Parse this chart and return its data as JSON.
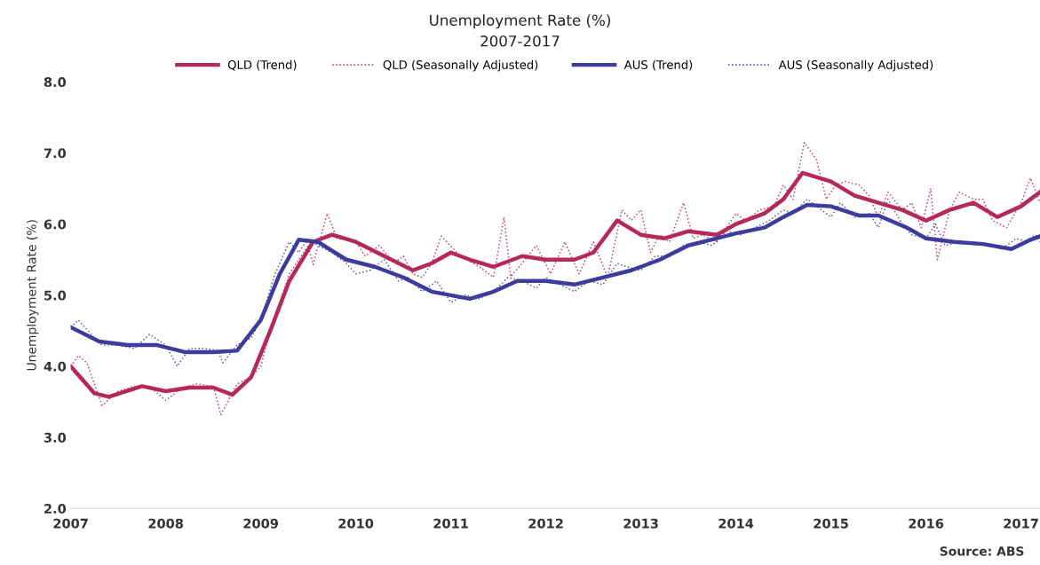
{
  "chart_data": {
    "type": "line",
    "title": "Unemployment Rate (%)",
    "subtitle": "2007-2017",
    "ylabel": "Unemployment Rate (%)",
    "xlim": [
      2007,
      2017.2
    ],
    "xticks": [
      2007,
      2008,
      2009,
      2010,
      2011,
      2012,
      2013,
      2014,
      2015,
      2016,
      2017
    ],
    "ylim": [
      2.0,
      8.0
    ],
    "yticks": [
      {
        "value": 2,
        "label": "2.0"
      },
      {
        "value": 3,
        "label": "3.0"
      },
      {
        "value": 4,
        "label": "4.0"
      },
      {
        "value": 5,
        "label": "5.0"
      },
      {
        "value": 6,
        "label": "6.0"
      },
      {
        "value": 7,
        "label": "7.0"
      },
      {
        "value": 8,
        "label": "8.0"
      }
    ],
    "grid": false,
    "legend": "top",
    "marker": "none",
    "annotations": [
      "Source: ABS"
    ],
    "series": [
      {
        "name": "QLD (Trend)",
        "color": "#b5285a",
        "line_style": "solid",
        "x": [
          2007.0,
          2007.25,
          2007.4,
          2007.75,
          2008.0,
          2008.25,
          2008.5,
          2008.7,
          2008.9,
          2009.1,
          2009.3,
          2009.55,
          2009.75,
          2010.0,
          2010.3,
          2010.6,
          2010.8,
          2011.0,
          2011.2,
          2011.45,
          2011.75,
          2012.0,
          2012.3,
          2012.5,
          2012.75,
          2013.0,
          2013.25,
          2013.5,
          2013.8,
          2014.0,
          2014.3,
          2014.5,
          2014.7,
          2015.0,
          2015.25,
          2015.5,
          2015.75,
          2016.0,
          2016.25,
          2016.5,
          2016.75,
          2017.0,
          2017.2
        ],
        "values": [
          4.0,
          3.62,
          3.57,
          3.72,
          3.65,
          3.7,
          3.7,
          3.6,
          3.85,
          4.5,
          5.2,
          5.75,
          5.85,
          5.75,
          5.55,
          5.35,
          5.45,
          5.6,
          5.5,
          5.4,
          5.55,
          5.5,
          5.5,
          5.6,
          6.05,
          5.85,
          5.8,
          5.9,
          5.85,
          6.0,
          6.15,
          6.35,
          6.72,
          6.6,
          6.4,
          6.3,
          6.2,
          6.05,
          6.2,
          6.3,
          6.1,
          6.25,
          6.45
        ]
      },
      {
        "name": "QLD (Seasonally Adjusted)",
        "color": "#c8416e",
        "line_style": "dotted",
        "x": [
          2007.0,
          2007.08,
          2007.17,
          2007.33,
          2007.5,
          2007.67,
          2007.83,
          2008.0,
          2008.17,
          2008.33,
          2008.5,
          2008.58,
          2008.75,
          2008.9,
          2009.0,
          2009.1,
          2009.3,
          2009.5,
          2009.55,
          2009.7,
          2009.8,
          2010.0,
          2010.1,
          2010.25,
          2010.4,
          2010.5,
          2010.6,
          2010.7,
          2010.8,
          2010.9,
          2011.1,
          2011.3,
          2011.45,
          2011.56,
          2011.63,
          2011.75,
          2011.9,
          2012.05,
          2012.2,
          2012.35,
          2012.5,
          2012.65,
          2012.8,
          2012.9,
          2013.0,
          2013.1,
          2013.2,
          2013.3,
          2013.45,
          2013.55,
          2013.65,
          2013.8,
          2014.0,
          2014.1,
          2014.25,
          2014.4,
          2014.5,
          2014.6,
          2014.72,
          2014.85,
          2014.95,
          2015.05,
          2015.15,
          2015.3,
          2015.4,
          2015.5,
          2015.6,
          2015.75,
          2015.85,
          2015.95,
          2016.05,
          2016.12,
          2016.25,
          2016.35,
          2016.5,
          2016.6,
          2016.7,
          2016.85,
          2017.0,
          2017.1,
          2017.2
        ],
        "values": [
          4.0,
          4.15,
          4.05,
          3.45,
          3.65,
          3.72,
          3.72,
          3.52,
          3.7,
          3.75,
          3.72,
          3.32,
          3.75,
          3.85,
          4.0,
          4.5,
          5.3,
          5.7,
          5.43,
          6.15,
          5.8,
          5.75,
          5.55,
          5.7,
          5.45,
          5.55,
          5.3,
          5.25,
          5.45,
          5.83,
          5.55,
          5.4,
          5.25,
          6.1,
          5.26,
          5.45,
          5.7,
          5.3,
          5.75,
          5.3,
          5.75,
          5.25,
          6.2,
          6.05,
          6.2,
          5.6,
          5.85,
          5.75,
          6.3,
          5.8,
          5.85,
          5.75,
          6.15,
          6.05,
          6.2,
          6.25,
          6.55,
          6.35,
          7.15,
          6.9,
          6.35,
          6.55,
          6.6,
          6.55,
          6.4,
          6.1,
          6.45,
          6.2,
          6.3,
          5.95,
          6.5,
          5.5,
          6.2,
          6.45,
          6.35,
          6.35,
          6.05,
          5.95,
          6.3,
          6.65,
          6.3
        ]
      },
      {
        "name": "AUS (Trend)",
        "color": "#3c3c9c",
        "line_style": "solid",
        "x": [
          2007.0,
          2007.3,
          2007.6,
          2007.9,
          2008.2,
          2008.5,
          2008.75,
          2009.0,
          2009.2,
          2009.4,
          2009.6,
          2009.9,
          2010.2,
          2010.5,
          2010.8,
          2011.0,
          2011.2,
          2011.45,
          2011.7,
          2012.0,
          2012.3,
          2012.6,
          2012.9,
          2013.2,
          2013.5,
          2013.8,
          2014.0,
          2014.3,
          2014.5,
          2014.75,
          2015.0,
          2015.3,
          2015.5,
          2015.8,
          2016.0,
          2016.3,
          2016.6,
          2016.9,
          2017.1,
          2017.2
        ],
        "values": [
          4.55,
          4.35,
          4.3,
          4.3,
          4.2,
          4.2,
          4.22,
          4.65,
          5.3,
          5.78,
          5.75,
          5.5,
          5.4,
          5.25,
          5.05,
          5.0,
          4.95,
          5.05,
          5.2,
          5.2,
          5.15,
          5.25,
          5.35,
          5.5,
          5.7,
          5.8,
          5.87,
          5.95,
          6.1,
          6.27,
          6.25,
          6.12,
          6.12,
          5.95,
          5.8,
          5.75,
          5.72,
          5.65,
          5.78,
          5.83
        ]
      },
      {
        "name": "AUS (Seasonally Adjusted)",
        "color": "#5a5ab4",
        "line_style": "dotted",
        "x": [
          2007.0,
          2007.08,
          2007.25,
          2007.33,
          2007.5,
          2007.67,
          2007.83,
          2008.0,
          2008.12,
          2008.25,
          2008.4,
          2008.55,
          2008.6,
          2008.75,
          2008.9,
          2009.0,
          2009.15,
          2009.3,
          2009.4,
          2009.5,
          2009.6,
          2009.75,
          2009.9,
          2010.0,
          2010.15,
          2010.3,
          2010.45,
          2010.55,
          2010.7,
          2010.85,
          2011.0,
          2011.15,
          2011.3,
          2011.45,
          2011.6,
          2011.75,
          2011.9,
          2012.0,
          2012.15,
          2012.3,
          2012.45,
          2012.6,
          2012.75,
          2012.85,
          2013.0,
          2013.15,
          2013.3,
          2013.45,
          2013.6,
          2013.75,
          2013.9,
          2014.05,
          2014.2,
          2014.35,
          2014.5,
          2014.6,
          2014.75,
          2014.85,
          2015.0,
          2015.1,
          2015.25,
          2015.4,
          2015.5,
          2015.6,
          2015.75,
          2015.85,
          2016.0,
          2016.1,
          2016.2,
          2016.35,
          2016.5,
          2016.65,
          2016.8,
          2016.95,
          2017.05,
          2017.15,
          2017.2
        ],
        "values": [
          4.55,
          4.65,
          4.4,
          4.3,
          4.3,
          4.25,
          4.45,
          4.3,
          4.0,
          4.25,
          4.25,
          4.22,
          4.05,
          4.3,
          4.4,
          4.65,
          5.3,
          5.75,
          5.6,
          5.8,
          5.7,
          5.6,
          5.45,
          5.3,
          5.35,
          5.5,
          5.2,
          5.25,
          5.05,
          5.2,
          4.9,
          5.0,
          4.95,
          5.05,
          5.25,
          5.2,
          5.1,
          5.25,
          5.15,
          5.05,
          5.2,
          5.15,
          5.45,
          5.4,
          5.35,
          5.55,
          5.55,
          5.7,
          5.75,
          5.7,
          5.9,
          5.85,
          5.95,
          6.05,
          6.2,
          6.15,
          6.35,
          6.25,
          6.1,
          6.3,
          6.1,
          6.15,
          5.95,
          6.35,
          6.0,
          5.85,
          5.8,
          6.0,
          5.7,
          5.75,
          5.75,
          5.7,
          5.65,
          5.8,
          5.75,
          5.85,
          5.75
        ]
      }
    ]
  }
}
